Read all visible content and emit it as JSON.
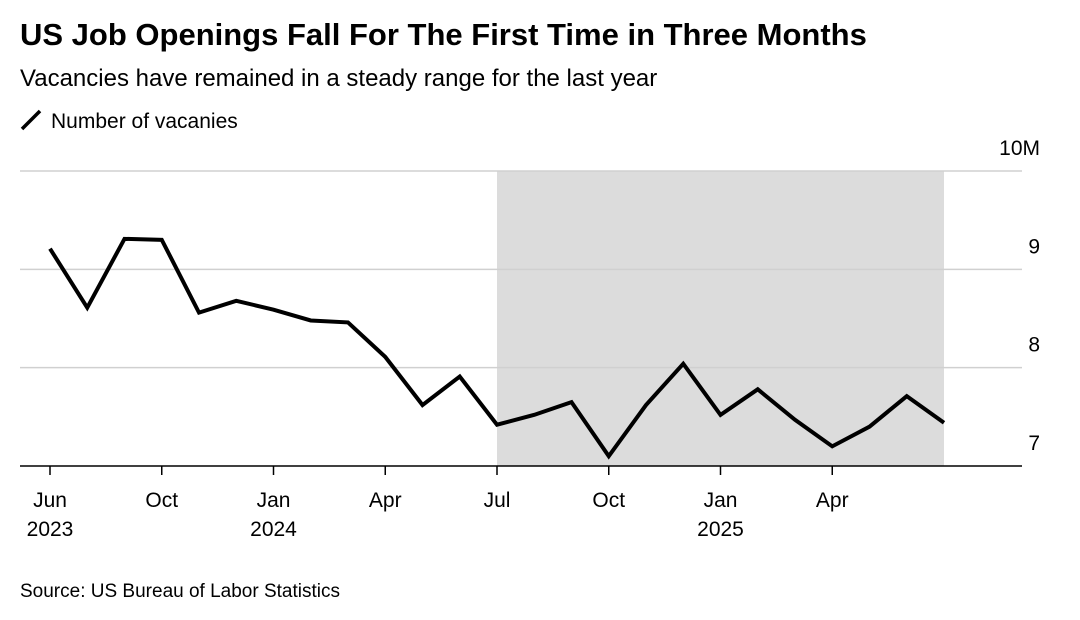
{
  "chart_data": {
    "type": "line",
    "title": "US Job Openings Fall For The First Time in Three Months",
    "subtitle": "Vacancies have remained in a steady range for the last year",
    "source": "Source: US Bureau of Labor Statistics",
    "categories": [
      "Jun",
      null,
      null,
      "Oct",
      null,
      null,
      "Jan",
      null,
      null,
      "Apr",
      null,
      null,
      "Jul",
      null,
      null,
      "Oct",
      null,
      null,
      "Jan",
      null,
      null,
      "Apr",
      null,
      null,
      null
    ],
    "years": [
      "2023",
      null,
      null,
      null,
      null,
      null,
      "2024",
      null,
      null,
      null,
      null,
      null,
      null,
      null,
      null,
      null,
      null,
      null,
      "2025",
      null,
      null,
      null,
      null,
      null,
      null
    ],
    "series": [
      {
        "name": "Number of vacanies",
        "color": "#000000",
        "values": [
          9.21,
          8.61,
          9.31,
          9.3,
          8.56,
          8.68,
          8.59,
          8.48,
          8.46,
          8.11,
          7.62,
          7.91,
          7.42,
          7.52,
          7.65,
          7.1,
          7.62,
          8.04,
          7.52,
          7.78,
          7.47,
          7.2,
          7.4,
          7.71,
          7.44
        ]
      }
    ],
    "highlight": {
      "from": 12,
      "to": 24,
      "color": "#dcdcdc"
    },
    "ylim": [
      7,
      10
    ],
    "yticks": [
      7,
      8,
      9,
      {
        "value": 10,
        "label": "10M"
      }
    ],
    "grid": true
  }
}
